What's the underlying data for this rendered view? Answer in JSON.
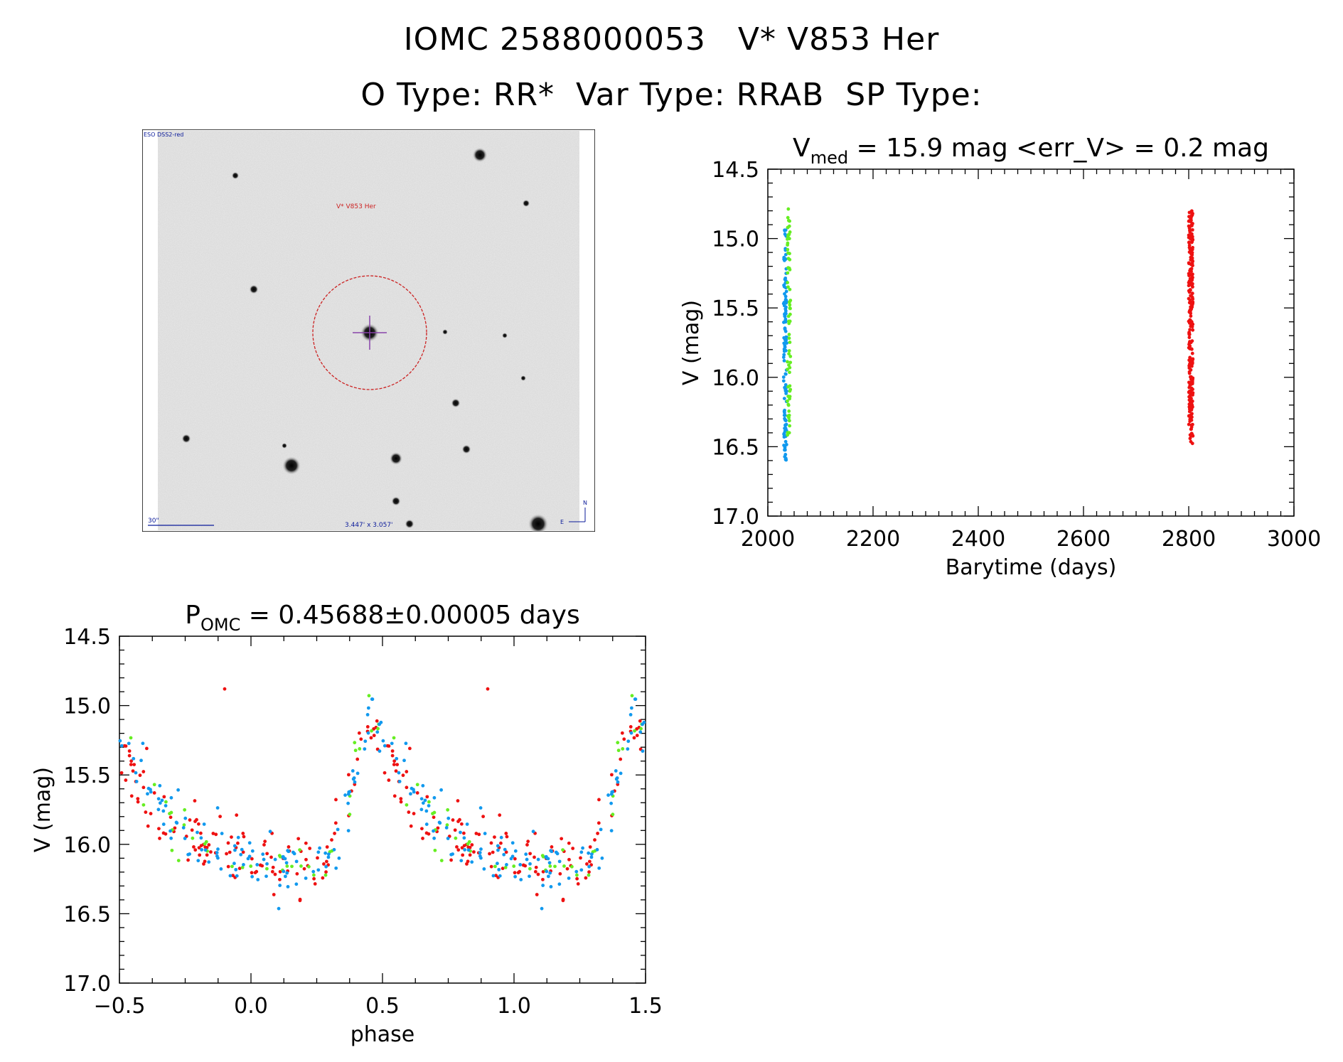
{
  "header": {
    "line1": "IOMC 2588000053   V* V853 Her",
    "line2": "O Type: RR*  Var Type: RRAB  SP Type:"
  },
  "finder_chart": {
    "corner_label": "ESO DSS2-red",
    "target_label": "V* V853 Her",
    "scale_label": "30\"",
    "fov_label": "3.447' x 3.057'",
    "north_label": "N",
    "east_label": "E",
    "target_circle_color": "#cc2222",
    "crosshair_color": "#8844aa",
    "annotation_color": "#0a1a9a"
  },
  "colors": {
    "red": "#ee1111",
    "green": "#66ee22",
    "blue": "#1199ee"
  },
  "chart_data": [
    {
      "type": "scatter",
      "title_main": "V",
      "title_sub": "med",
      "title_rest": " = 15.9 mag <err_V> = 0.2 mag",
      "xlabel": "Barytime (days)",
      "ylabel": "V (mag)",
      "xlim": [
        2000,
        3000
      ],
      "ylim": [
        17.0,
        14.5
      ],
      "y_inverted": true,
      "xticks": [
        "2000",
        "2200",
        "2400",
        "2600",
        "2800",
        "3000"
      ],
      "yticks": [
        "14.5",
        "15.0",
        "15.5",
        "16.0",
        "16.5",
        "17.0"
      ],
      "series": [
        {
          "color": "blue",
          "x_range": [
            2030,
            2036
          ],
          "y_range": [
            14.93,
            16.6
          ],
          "count": 120
        },
        {
          "color": "green",
          "x_range": [
            2037,
            2043
          ],
          "y_range": [
            14.78,
            16.43
          ],
          "count": 70
        },
        {
          "color": "red",
          "x_range": [
            2800,
            2808
          ],
          "y_range": [
            14.8,
            16.48
          ],
          "count": 260
        }
      ]
    },
    {
      "type": "scatter",
      "title_main": "P",
      "title_sub": "OMC",
      "title_rest": " = 0.45688±0.00005 days",
      "xlabel": "phase",
      "ylabel": "V (mag)",
      "xlim": [
        -0.5,
        1.5
      ],
      "ylim": [
        17.0,
        14.5
      ],
      "y_inverted": true,
      "xticks": [
        "−0.5",
        "0.0",
        "0.5",
        "1.0",
        "1.5"
      ],
      "yticks": [
        "14.5",
        "15.0",
        "15.5",
        "16.0",
        "16.5",
        "17.0"
      ],
      "period_days": 0.45688,
      "max_phase": 0.45,
      "max_mag": 15.0,
      "min_mag": 16.15,
      "series": [
        {
          "color": "red",
          "count": 130
        },
        {
          "color": "green",
          "count": 40
        },
        {
          "color": "blue",
          "count": 120
        }
      ]
    }
  ]
}
